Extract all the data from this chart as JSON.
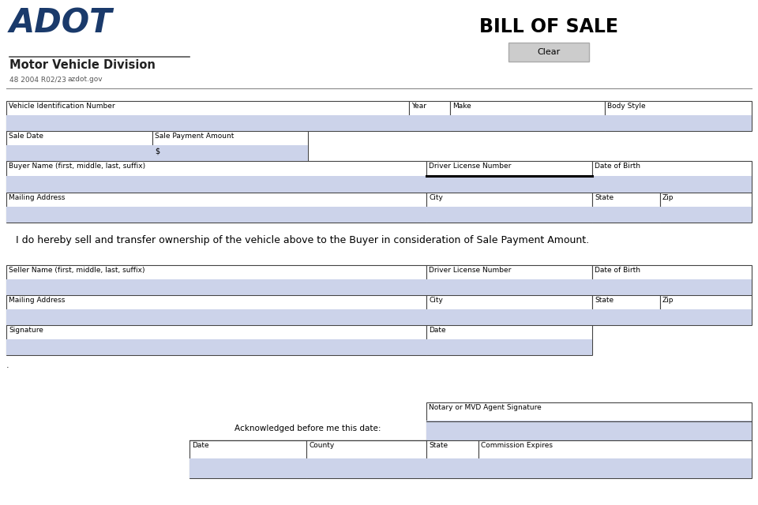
{
  "title": "BILL OF SALE",
  "adot_text": "ADOT",
  "mvd_text": "Motor Vehicle Division",
  "form_num": "48 2004 R02/23",
  "website": "azdot.gov",
  "clear_btn": "Clear",
  "field_bg": "#ccd3ea",
  "border_color": "#444444",
  "adot_color": "#1a3a6b",
  "statement": "   I do hereby sell and transfer ownership of the vehicle above to the Buyer in consideration of Sale Payment Amount.",
  "ack_text": "Acknowledged before me this date:"
}
